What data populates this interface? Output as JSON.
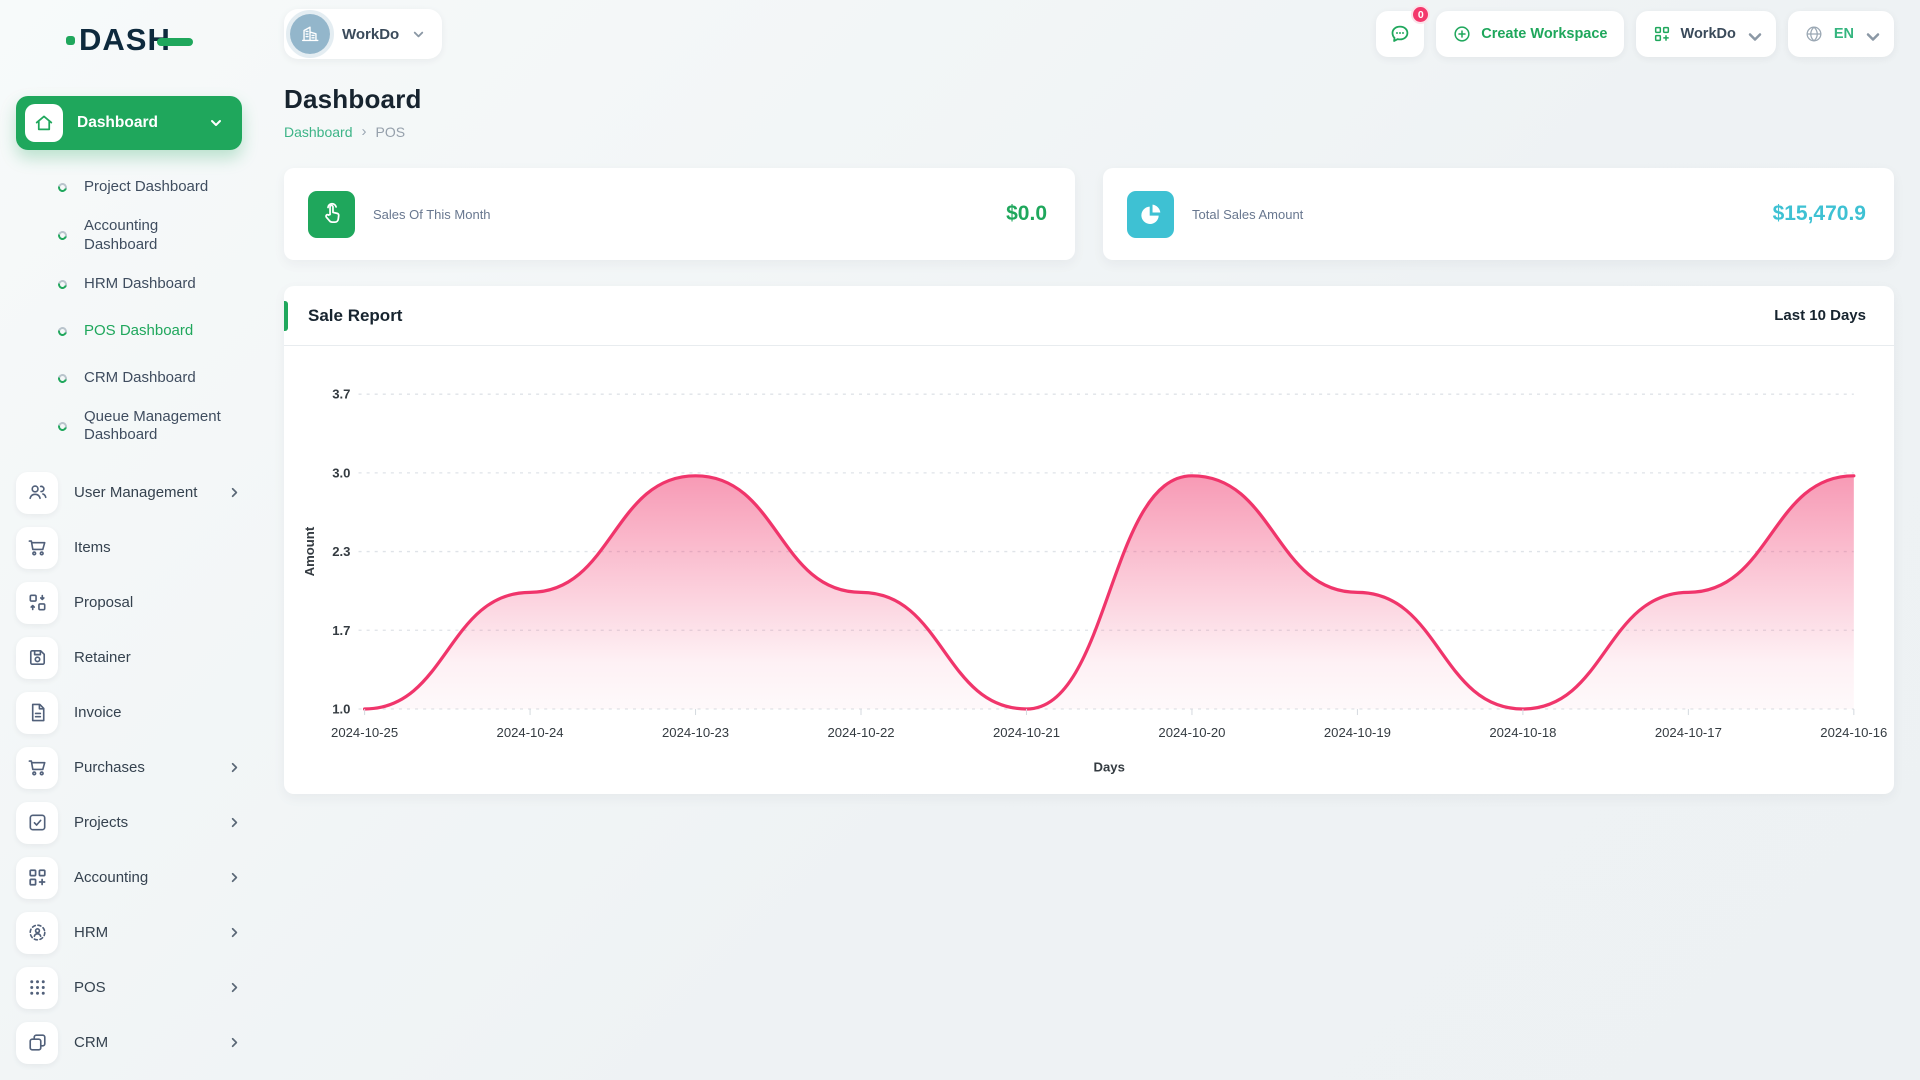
{
  "app": {
    "logo_text": "DASH"
  },
  "topbar": {
    "workspace_pill": {
      "label": "WorkDo",
      "icon": "building-icon"
    },
    "chat": {
      "icon": "chat-icon",
      "badge": "0"
    },
    "create_workspace": {
      "label": "Create Workspace",
      "icon": "plus-circle-icon"
    },
    "workspace_menu": {
      "label": "WorkDo",
      "icon": "grid-plus-icon"
    },
    "language": {
      "label": "EN",
      "icon": "globe-icon"
    }
  },
  "sidebar": {
    "active_group": {
      "label": "Dashboard",
      "icon": "home-icon"
    },
    "dashboard_children": [
      {
        "label": "Project Dashboard",
        "active": false
      },
      {
        "label": "Accounting Dashboard",
        "active": false
      },
      {
        "label": "HRM Dashboard",
        "active": false
      },
      {
        "label": "POS Dashboard",
        "active": true
      },
      {
        "label": "CRM Dashboard",
        "active": false
      },
      {
        "label": "Queue Management Dashboard",
        "active": false
      }
    ],
    "menu": [
      {
        "label": "User Management",
        "icon": "users-icon",
        "expandable": true
      },
      {
        "label": "Items",
        "icon": "cart-icon",
        "expandable": false
      },
      {
        "label": "Proposal",
        "icon": "swap-icon",
        "expandable": false
      },
      {
        "label": "Retainer",
        "icon": "save-icon",
        "expandable": false
      },
      {
        "label": "Invoice",
        "icon": "document-icon",
        "expandable": false
      },
      {
        "label": "Purchases",
        "icon": "cart-icon",
        "expandable": true
      },
      {
        "label": "Projects",
        "icon": "check-square-icon",
        "expandable": true
      },
      {
        "label": "Accounting",
        "icon": "grid-plus-icon",
        "expandable": true
      },
      {
        "label": "HRM",
        "icon": "user-focus-icon",
        "expandable": true
      },
      {
        "label": "POS",
        "icon": "dots-grid-icon",
        "expandable": true
      },
      {
        "label": "CRM",
        "icon": "overlap-squares-icon",
        "expandable": true
      }
    ]
  },
  "page": {
    "title": "Dashboard",
    "breadcrumb": [
      {
        "label": "Dashboard",
        "link": true
      },
      {
        "label": "POS",
        "link": false
      }
    ]
  },
  "stats": [
    {
      "label": "Sales Of This Month",
      "value": "$0.0",
      "icon": "tap-icon",
      "color": "#1fa75c"
    },
    {
      "label": "Total Sales Amount",
      "value": "$15,470.9",
      "icon": "pie-icon",
      "color": "#3ec1d3"
    }
  ],
  "report": {
    "title": "Sale Report",
    "range": "Last 10 Days"
  },
  "theme": {
    "accent_green": "#1fa75c",
    "link_green": "#3db487",
    "teal": "#3ec1d3",
    "chart_pink": "#f0356b",
    "badge_pink": "#f4386c"
  },
  "chart_data": {
    "type": "area",
    "title": "Sale Report",
    "x": [
      "2024-10-25",
      "2024-10-24",
      "2024-10-23",
      "2024-10-22",
      "2024-10-21",
      "2024-10-20",
      "2024-10-19",
      "2024-10-18",
      "2024-10-17",
      "2024-10-16"
    ],
    "series": [
      {
        "name": "Amount",
        "values": [
          1.0,
          2.0,
          3.0,
          2.0,
          1.0,
          3.0,
          2.0,
          1.0,
          2.0,
          3.0
        ]
      }
    ],
    "xlabel": "Days",
    "ylabel": "Amount",
    "yticks": [
      1.0,
      1.7,
      2.3,
      3.0,
      3.7
    ],
    "ylim": [
      1.0,
      3.7
    ],
    "line_color": "#f0356b",
    "fill": "pink gradient fading down",
    "grid": "dashed horizontal",
    "legend": "none",
    "curve": "smooth"
  }
}
